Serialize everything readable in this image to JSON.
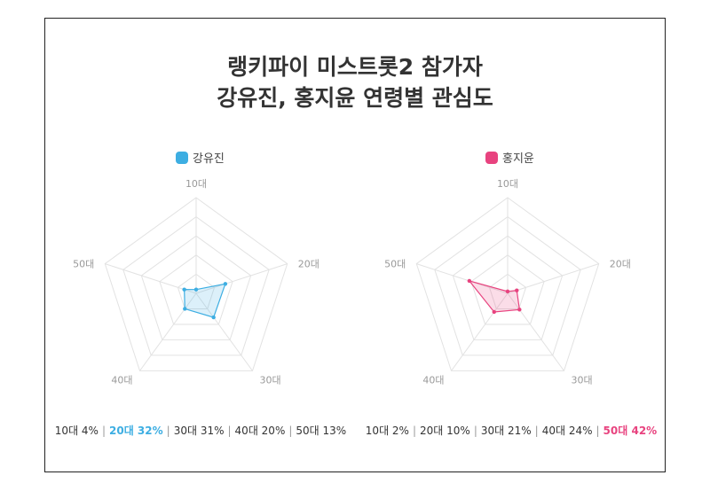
{
  "title": {
    "line1": "랭키파이 미스트롯2 참가자",
    "line2": "강유진, 홍지윤 연령별 관심도"
  },
  "colors": {
    "kang": "#3daee2",
    "hong": "#e8437f"
  },
  "chart_data": [
    {
      "type": "radar",
      "series_name": "강유진",
      "axes": [
        "10대",
        "20대",
        "30대",
        "40대",
        "50대"
      ],
      "values": [
        4,
        32,
        31,
        20,
        13
      ],
      "unit": "%",
      "rmax": 100,
      "rings": 5,
      "highlight_index": 1,
      "summary": [
        "10대 4%",
        "20대 32%",
        "30대 31%",
        "40대 20%",
        "50대 13%"
      ]
    },
    {
      "type": "radar",
      "series_name": "홍지윤",
      "axes": [
        "10대",
        "20대",
        "30대",
        "40대",
        "50대"
      ],
      "values": [
        2,
        10,
        21,
        24,
        42
      ],
      "unit": "%",
      "rmax": 100,
      "rings": 5,
      "highlight_index": 4,
      "summary": [
        "10대 2%",
        "20대 10%",
        "30대 21%",
        "40대 24%",
        "50대 42%"
      ]
    }
  ]
}
